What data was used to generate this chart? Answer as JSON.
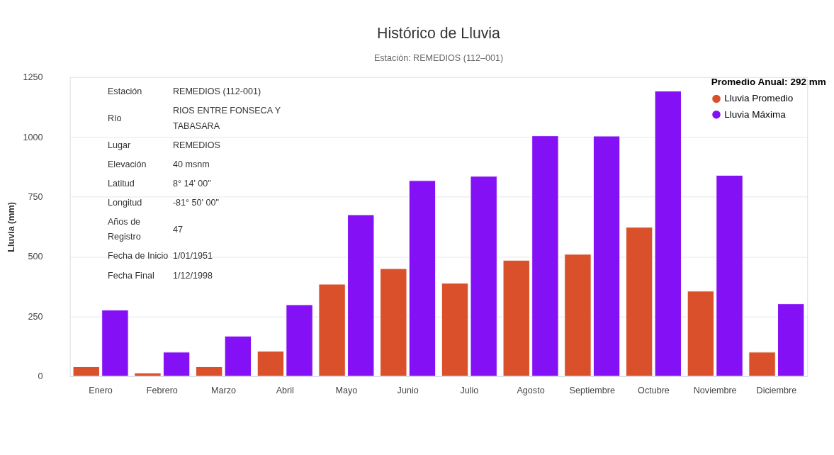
{
  "chart_data": {
    "type": "bar",
    "title": "Histórico de Lluvia",
    "subtitle": "Estación: REMEDIOS (112–001)",
    "ylabel": "Lluvia (mm)",
    "legend_title": "Promedio Anual: 292 mm",
    "categories": [
      "Enero",
      "Febrero",
      "Marzo",
      "Abril",
      "Mayo",
      "Junio",
      "Julio",
      "Agosto",
      "Septiembre",
      "Octubre",
      "Noviembre",
      "Diciembre"
    ],
    "series": [
      {
        "name": "Lluvia Promedio",
        "color": "#d9502a",
        "values": [
          40,
          14,
          40,
          105,
          385,
          450,
          389,
          485,
          510,
          623,
          356,
          101
        ]
      },
      {
        "name": "Lluvia Máxima",
        "color": "#8411f5",
        "values": [
          277,
          101,
          168,
          299,
          675,
          818,
          836,
          1005,
          1004,
          1192,
          840,
          303
        ]
      }
    ],
    "ylim": [
      0,
      1250
    ],
    "yticks": [
      0,
      250,
      500,
      750,
      1000,
      1250
    ],
    "grid": "y",
    "legend": "top right",
    "annotations": [
      "Estación",
      "REMEDIOS (112-001)",
      "Río",
      "RIOS ENTRE FONSECA Y\nTABASARA",
      "Lugar",
      "REMEDIOS",
      "Elevación",
      "40 msnm",
      "Latitud",
      "8° 14' 00\"",
      "Longitud",
      "-81° 50' 00\"",
      "Años de\nRegistro",
      "47",
      "Fecha de Inicio",
      "1/01/1951",
      "Fecha Final",
      "1/12/1998"
    ]
  }
}
